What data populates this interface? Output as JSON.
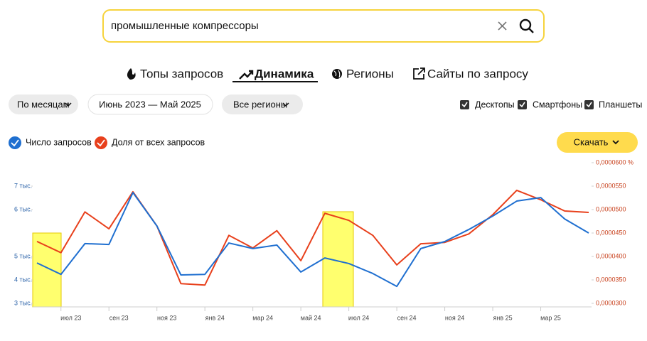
{
  "search": {
    "query": "промышленные компрессоры"
  },
  "tabs": [
    "Топы запросов",
    "Динамика",
    "Регионы",
    "Сайты по запросу"
  ],
  "filters": {
    "period_mode": "По месяцам",
    "range": "Июнь 2023 — Май 2025",
    "region": "Все регионы"
  },
  "devices": [
    "Десктопы",
    "Смартфоны",
    "Планшеты"
  ],
  "download": "Скачать",
  "chart_data": {
    "type": "line",
    "categories": [
      null,
      "июл 23",
      null,
      "сен 23",
      null,
      "ноя 23",
      null,
      "янв 24",
      null,
      "мар 24",
      null,
      "май 24",
      null,
      "июл 24",
      null,
      "сен 24",
      null,
      "ноя 24",
      null,
      "янв 25",
      null,
      "мар 25",
      null,
      null
    ],
    "series": [
      {
        "name": "Число запросов",
        "color": "#1f6fd0",
        "values": [
          4380,
          3990,
          5040,
          5010,
          6780,
          5640,
          3970,
          3990,
          5060,
          4870,
          4990,
          4070,
          4550,
          4360,
          4020,
          3580,
          4870,
          5110,
          5520,
          5980,
          6490,
          6610,
          5880,
          5400
        ]
      },
      {
        "name": "Доля от всех запросов",
        "color": "#e8401c",
        "axis": "y2",
        "values": [
          4.32e-05,
          4.08e-05,
          4.95e-05,
          4.59e-05,
          5.38e-05,
          4.65e-05,
          3.42e-05,
          3.39e-05,
          4.45e-05,
          4.18e-05,
          4.55e-05,
          3.91e-05,
          4.92e-05,
          4.77e-05,
          4.45e-05,
          3.82e-05,
          4.27e-05,
          4.3e-05,
          4.48e-05,
          4.89e-05,
          5.41e-05,
          5.21e-05,
          4.97e-05,
          4.94e-05
        ]
      }
    ],
    "ylim": [
      2880,
      7800
    ],
    "yticks": [
      {
        "value": 3000,
        "label": "3 тыс."
      },
      {
        "value": 3800,
        "label": "4 тыс."
      },
      {
        "value": 4600,
        "label": "5 тыс."
      },
      {
        "value": 6200,
        "label": "6 тыс."
      },
      {
        "value": 7000,
        "label": "7 тыс."
      }
    ],
    "y2lim": [
      2.924e-05,
      6e-05
    ],
    "y2ticks": [
      {
        "value": 3e-05,
        "label": "0,0000300"
      },
      {
        "value": 3.5e-05,
        "label": "0,0000350"
      },
      {
        "value": 4e-05,
        "label": "0,0000400"
      },
      {
        "value": 4.5e-05,
        "label": "0,0000450"
      },
      {
        "value": 5e-05,
        "label": "0,0000500"
      },
      {
        "value": 5.5e-05,
        "label": "0,0000550"
      },
      {
        "value": 6e-05,
        "label": "0,0000600 %"
      }
    ]
  }
}
